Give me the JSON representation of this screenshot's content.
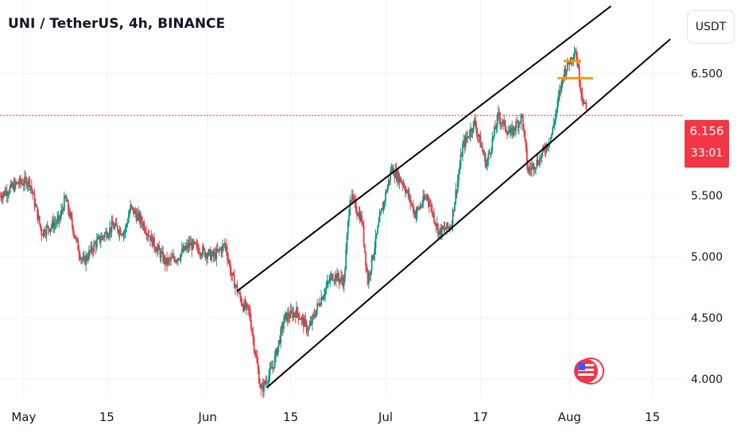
{
  "header": {
    "title": "UNI / TetherUS, 4h, BINANCE"
  },
  "toolbar": {
    "currency_label": "USDT"
  },
  "last_price": {
    "value": "6.156",
    "countdown": "33:01"
  },
  "colors": {
    "up": "#089981",
    "down": "#f23645",
    "channel": "#000000",
    "markers": "#ff9800",
    "price_line": "#f23645",
    "grid": "#f0f3fa"
  },
  "icons": {
    "event": "us-flag-icon"
  },
  "chart_data": {
    "type": "candlestick",
    "symbol": "UNI/USDT",
    "interval": "4h",
    "exchange": "BINANCE",
    "ylim": [
      3.85,
      7.1
    ],
    "y_ticks": [
      {
        "value": 4.0,
        "label": "4.000"
      },
      {
        "value": 4.5,
        "label": "4.500"
      },
      {
        "value": 5.0,
        "label": "5.000"
      },
      {
        "value": 5.5,
        "label": "5.500"
      },
      {
        "value": 6.5,
        "label": "6.500"
      }
    ],
    "x_ticks": [
      {
        "date": "2023-05-01",
        "label": "May"
      },
      {
        "date": "2023-05-15",
        "label": "15"
      },
      {
        "date": "2023-06-01",
        "label": "Jun"
      },
      {
        "date": "2023-06-15",
        "label": "15"
      },
      {
        "date": "2023-07-01",
        "label": "Jul"
      },
      {
        "date": "2023-07-17",
        "label": "17"
      },
      {
        "date": "2023-08-01",
        "label": "Aug"
      },
      {
        "date": "2023-08-15",
        "label": "15"
      }
    ],
    "xlim": [
      "2023-04-27",
      "2023-08-20"
    ],
    "last_price": 6.156,
    "price_path": [
      [
        "2023-04-27",
        5.5
      ],
      [
        "2023-04-30",
        5.6
      ],
      [
        "2023-05-02",
        5.62
      ],
      [
        "2023-05-04",
        5.2
      ],
      [
        "2023-05-07",
        5.3
      ],
      [
        "2023-05-08",
        5.48
      ],
      [
        "2023-05-10",
        5.1
      ],
      [
        "2023-05-11",
        4.95
      ],
      [
        "2023-05-13",
        5.1
      ],
      [
        "2023-05-16",
        5.25
      ],
      [
        "2023-05-18",
        5.2
      ],
      [
        "2023-05-19",
        5.4
      ],
      [
        "2023-05-21",
        5.28
      ],
      [
        "2023-05-23",
        5.1
      ],
      [
        "2023-05-25",
        4.95
      ],
      [
        "2023-05-27",
        5.0
      ],
      [
        "2023-05-29",
        5.1
      ],
      [
        "2023-05-31",
        5.05
      ],
      [
        "2023-06-02",
        5.0
      ],
      [
        "2023-06-04",
        5.1
      ],
      [
        "2023-06-05",
        4.85
      ],
      [
        "2023-06-07",
        4.6
      ],
      [
        "2023-06-08",
        4.55
      ],
      [
        "2023-06-10",
        3.9
      ],
      [
        "2023-06-12",
        4.1
      ],
      [
        "2023-06-14",
        4.5
      ],
      [
        "2023-06-16",
        4.55
      ],
      [
        "2023-06-18",
        4.4
      ],
      [
        "2023-06-20",
        4.65
      ],
      [
        "2023-06-22",
        4.85
      ],
      [
        "2023-06-24",
        4.8
      ],
      [
        "2023-06-25",
        5.5
      ],
      [
        "2023-06-27",
        5.3
      ],
      [
        "2023-06-28",
        4.8
      ],
      [
        "2023-06-30",
        5.3
      ],
      [
        "2023-07-02",
        5.72
      ],
      [
        "2023-07-04",
        5.6
      ],
      [
        "2023-07-06",
        5.35
      ],
      [
        "2023-07-08",
        5.5
      ],
      [
        "2023-07-10",
        5.2
      ],
      [
        "2023-07-12",
        5.25
      ],
      [
        "2023-07-14",
        5.9
      ],
      [
        "2023-07-16",
        6.1
      ],
      [
        "2023-07-18",
        5.75
      ],
      [
        "2023-07-20",
        6.15
      ],
      [
        "2023-07-22",
        6.0
      ],
      [
        "2023-07-24",
        6.15
      ],
      [
        "2023-07-25",
        5.7
      ],
      [
        "2023-07-27",
        5.8
      ],
      [
        "2023-07-29",
        6.0
      ],
      [
        "2023-07-31",
        6.5
      ],
      [
        "2023-08-02",
        6.7
      ],
      [
        "2023-08-03",
        6.35
      ],
      [
        "2023-08-04",
        6.156
      ]
    ],
    "channel_lines": [
      {
        "start": [
          "2023-06-06",
          4.72
        ],
        "end": [
          "2023-08-08",
          7.05
        ]
      },
      {
        "start": [
          "2023-06-11",
          3.93
        ],
        "end": [
          "2023-08-18",
          6.78
        ]
      }
    ],
    "horizontal_markers": [
      {
        "value": 6.6,
        "from": "2023-07-31",
        "to": "2023-08-03"
      },
      {
        "value": 6.46,
        "from": "2023-07-30",
        "to": "2023-08-05"
      }
    ]
  }
}
